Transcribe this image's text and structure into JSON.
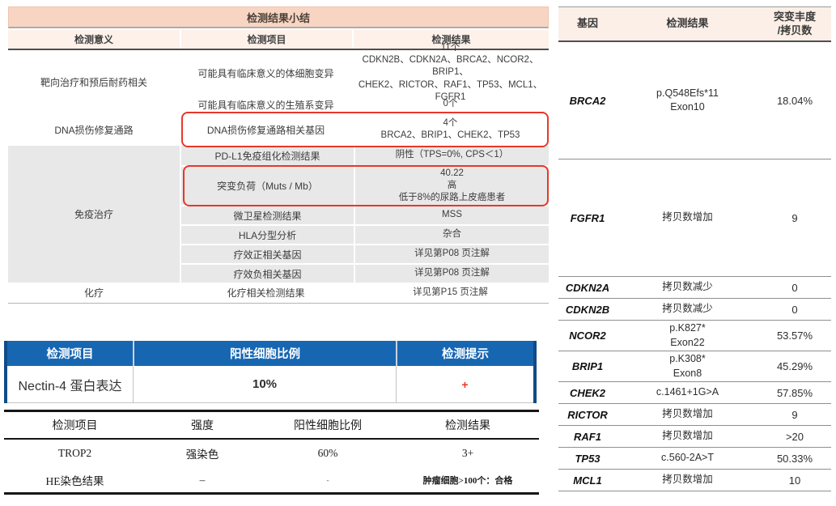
{
  "colors": {
    "title_bar_salmon": "#f8d5c2",
    "header_peach": "#fdf1ea",
    "section_gray": "#e8e8e8",
    "highlight_red": "#e7382a",
    "table_blue": "#1766b2",
    "table_blue_edge": "#0f4c87"
  },
  "summary_table": {
    "title": "检测结果小结",
    "headers": [
      "检测意义",
      "检测项目",
      "检测结果"
    ],
    "sections": [
      {
        "significance": "靶向治疗和预后耐药相关",
        "rows": [
          {
            "item": "可能具有临床意义的体细胞变异",
            "result": "11个\nCDKN2B、CDKN2A、BRCA2、NCOR2、BRIP1、\nCHEK2、RICTOR、RAF1、TP53、MCL1、FGFR1"
          },
          {
            "item": "可能具有临床意义的生殖系变异",
            "result": "0个"
          }
        ]
      },
      {
        "significance": "DNA损伤修复通路",
        "rows": [
          {
            "item": "DNA损伤修复通路相关基因",
            "result": "4个\nBRCA2、BRIP1、CHEK2、TP53",
            "highlighted": true
          }
        ]
      },
      {
        "significance": "免疫治疗",
        "rows": [
          {
            "item": "PD-L1免疫组化检测结果",
            "result": "阴性（TPS=0%, CPS＜1）"
          },
          {
            "item": "突变负荷（Muts / Mb）",
            "result": "40.22\n高\n低于8%的尿路上皮癌患者",
            "highlighted": true
          },
          {
            "item": "微卫星检测结果",
            "result": "MSS"
          },
          {
            "item": "HLA分型分析",
            "result": "杂合"
          },
          {
            "item": "疗效正相关基因",
            "result": "详见第P08 页注解"
          },
          {
            "item": "疗效负相关基因",
            "result": "详见第P08 页注解"
          }
        ]
      },
      {
        "significance": "化疗",
        "rows": [
          {
            "item": "化疗相关检测结果",
            "result": "详见第P15 页注解"
          }
        ]
      }
    ]
  },
  "nectin_table": {
    "headers": [
      "检测项目",
      "阳性细胞比例",
      "检测提示"
    ],
    "row": {
      "item": "Nectin-4 蛋白表达",
      "ratio": "10%",
      "hint": "+"
    }
  },
  "ihc_table": {
    "headers": [
      "检测项目",
      "强度",
      "阳性细胞比例",
      "检测结果"
    ],
    "rows": [
      {
        "item": "TROP2",
        "intensity": "强染色",
        "ratio": "60%",
        "result": "3+"
      },
      {
        "item": "HE染色结果",
        "intensity": "–",
        "ratio": "-",
        "result": "肿瘤细胞>100个：合格"
      }
    ]
  },
  "gene_table": {
    "headers": [
      "基因",
      "检测结果",
      "突变丰度\n/拷贝数"
    ],
    "rows": [
      {
        "gene": "BRCA2",
        "result": "p.Q548Efs*11\nExon10",
        "value": "18.04%"
      },
      {
        "gene": "FGFR1",
        "result": "拷贝数增加",
        "value": "9"
      },
      {
        "gene": "CDKN2A",
        "result": "拷贝数减少",
        "value": "0"
      },
      {
        "gene": "CDKN2B",
        "result": "拷贝数减少",
        "value": "0"
      },
      {
        "gene": "NCOR2",
        "result": "p.K827*\nExon22",
        "value": "53.57%"
      },
      {
        "gene": "BRIP1",
        "result": "p.K308*\nExon8",
        "value": "45.29%"
      },
      {
        "gene": "CHEK2",
        "result": "c.1461+1G>A",
        "value": "57.85%"
      },
      {
        "gene": "RICTOR",
        "result": "拷贝数增加",
        "value": "9"
      },
      {
        "gene": "RAF1",
        "result": "拷贝数增加",
        "value": ">20"
      },
      {
        "gene": "TP53",
        "result": "c.560-2A>T",
        "value": "50.33%"
      },
      {
        "gene": "MCL1",
        "result": "拷贝数增加",
        "value": "10"
      }
    ]
  }
}
